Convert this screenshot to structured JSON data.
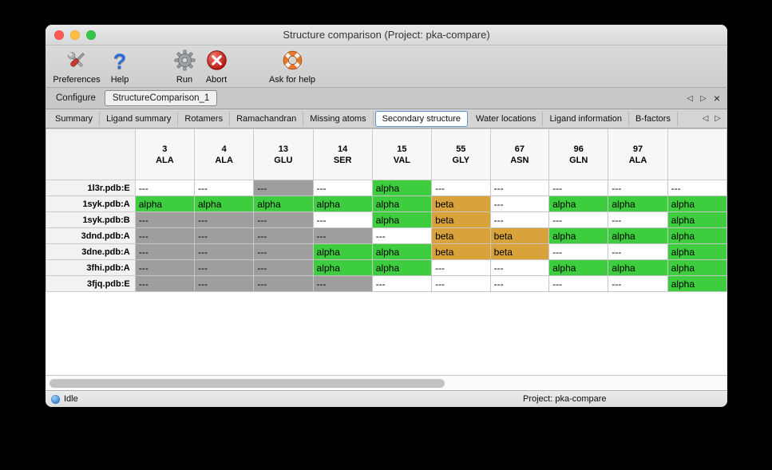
{
  "colors": {
    "alpha": "#3ecd3e",
    "beta": "#d9a33c",
    "missing": "#9e9e9e"
  },
  "window": {
    "title": "Structure comparison (Project: pka-compare)"
  },
  "toolbar": {
    "items": [
      {
        "label": "Preferences",
        "icon": "tools-icon"
      },
      {
        "label": "Help",
        "icon": "question-icon"
      },
      {
        "label": "Run",
        "icon": "gear-icon"
      },
      {
        "label": "Abort",
        "icon": "abort-icon"
      },
      {
        "label": "Ask for help",
        "icon": "life-ring-icon"
      }
    ]
  },
  "tabs": {
    "items": [
      {
        "label": "Configure",
        "selected": false
      },
      {
        "label": "StructureComparison_1",
        "selected": true
      }
    ]
  },
  "subtabs": {
    "items": [
      {
        "label": "Summary",
        "selected": false
      },
      {
        "label": "Ligand summary",
        "selected": false
      },
      {
        "label": "Rotamers",
        "selected": false
      },
      {
        "label": "Ramachandran",
        "selected": false
      },
      {
        "label": "Missing atoms",
        "selected": false
      },
      {
        "label": "Secondary structure",
        "selected": true
      },
      {
        "label": "Water locations",
        "selected": false
      },
      {
        "label": "Ligand information",
        "selected": false
      },
      {
        "label": "B-factors",
        "selected": false
      }
    ]
  },
  "table": {
    "columns": [
      {
        "number": "3",
        "residue": "ALA"
      },
      {
        "number": "4",
        "residue": "ALA"
      },
      {
        "number": "13",
        "residue": "GLU"
      },
      {
        "number": "14",
        "residue": "SER"
      },
      {
        "number": "15",
        "residue": "VAL"
      },
      {
        "number": "55",
        "residue": "GLY"
      },
      {
        "number": "67",
        "residue": "ASN"
      },
      {
        "number": "96",
        "residue": "GLN"
      },
      {
        "number": "97",
        "residue": "ALA"
      },
      {
        "number": "",
        "residue": ""
      }
    ],
    "rows": [
      {
        "label": "1l3r.pdb:E",
        "cells": [
          {
            "text": "---",
            "type": "blank"
          },
          {
            "text": "---",
            "type": "blank"
          },
          {
            "text": "---",
            "type": "missing"
          },
          {
            "text": "---",
            "type": "blank"
          },
          {
            "text": "alpha",
            "type": "alpha"
          },
          {
            "text": "---",
            "type": "blank"
          },
          {
            "text": "---",
            "type": "blank"
          },
          {
            "text": "---",
            "type": "blank"
          },
          {
            "text": "---",
            "type": "blank"
          },
          {
            "text": "---",
            "type": "blank"
          }
        ]
      },
      {
        "label": "1syk.pdb:A",
        "cells": [
          {
            "text": "alpha",
            "type": "alpha"
          },
          {
            "text": "alpha",
            "type": "alpha"
          },
          {
            "text": "alpha",
            "type": "alpha"
          },
          {
            "text": "alpha",
            "type": "alpha"
          },
          {
            "text": "alpha",
            "type": "alpha"
          },
          {
            "text": "beta",
            "type": "beta"
          },
          {
            "text": "---",
            "type": "blank"
          },
          {
            "text": "alpha",
            "type": "alpha"
          },
          {
            "text": "alpha",
            "type": "alpha"
          },
          {
            "text": "alpha",
            "type": "alpha"
          }
        ]
      },
      {
        "label": "1syk.pdb:B",
        "cells": [
          {
            "text": "---",
            "type": "missing"
          },
          {
            "text": "---",
            "type": "missing"
          },
          {
            "text": "---",
            "type": "missing"
          },
          {
            "text": "---",
            "type": "blank"
          },
          {
            "text": "alpha",
            "type": "alpha"
          },
          {
            "text": "beta",
            "type": "beta"
          },
          {
            "text": "---",
            "type": "blank"
          },
          {
            "text": "---",
            "type": "blank"
          },
          {
            "text": "---",
            "type": "blank"
          },
          {
            "text": "alpha",
            "type": "alpha"
          }
        ]
      },
      {
        "label": "3dnd.pdb:A",
        "cells": [
          {
            "text": "---",
            "type": "missing"
          },
          {
            "text": "---",
            "type": "missing"
          },
          {
            "text": "---",
            "type": "missing"
          },
          {
            "text": "---",
            "type": "missing"
          },
          {
            "text": "---",
            "type": "blank"
          },
          {
            "text": "beta",
            "type": "beta"
          },
          {
            "text": "beta",
            "type": "beta"
          },
          {
            "text": "alpha",
            "type": "alpha"
          },
          {
            "text": "alpha",
            "type": "alpha"
          },
          {
            "text": "alpha",
            "type": "alpha"
          }
        ]
      },
      {
        "label": "3dne.pdb:A",
        "cells": [
          {
            "text": "---",
            "type": "missing"
          },
          {
            "text": "---",
            "type": "missing"
          },
          {
            "text": "---",
            "type": "missing"
          },
          {
            "text": "alpha",
            "type": "alpha"
          },
          {
            "text": "alpha",
            "type": "alpha"
          },
          {
            "text": "beta",
            "type": "beta"
          },
          {
            "text": "beta",
            "type": "beta"
          },
          {
            "text": "---",
            "type": "blank"
          },
          {
            "text": "---",
            "type": "blank"
          },
          {
            "text": "alpha",
            "type": "alpha"
          }
        ]
      },
      {
        "label": "3fhi.pdb:A",
        "cells": [
          {
            "text": "---",
            "type": "missing"
          },
          {
            "text": "---",
            "type": "missing"
          },
          {
            "text": "---",
            "type": "missing"
          },
          {
            "text": "alpha",
            "type": "alpha"
          },
          {
            "text": "alpha",
            "type": "alpha"
          },
          {
            "text": "---",
            "type": "blank"
          },
          {
            "text": "---",
            "type": "blank"
          },
          {
            "text": "alpha",
            "type": "alpha"
          },
          {
            "text": "alpha",
            "type": "alpha"
          },
          {
            "text": "alpha",
            "type": "alpha"
          }
        ]
      },
      {
        "label": "3fjq.pdb:E",
        "cells": [
          {
            "text": "---",
            "type": "missing"
          },
          {
            "text": "---",
            "type": "missing"
          },
          {
            "text": "---",
            "type": "missing"
          },
          {
            "text": "---",
            "type": "missing"
          },
          {
            "text": "---",
            "type": "blank"
          },
          {
            "text": "---",
            "type": "blank"
          },
          {
            "text": "---",
            "type": "blank"
          },
          {
            "text": "---",
            "type": "blank"
          },
          {
            "text": "---",
            "type": "blank"
          },
          {
            "text": "alpha",
            "type": "alpha"
          }
        ]
      }
    ]
  },
  "statusbar": {
    "status": "Idle",
    "project": "Project: pka-compare"
  }
}
